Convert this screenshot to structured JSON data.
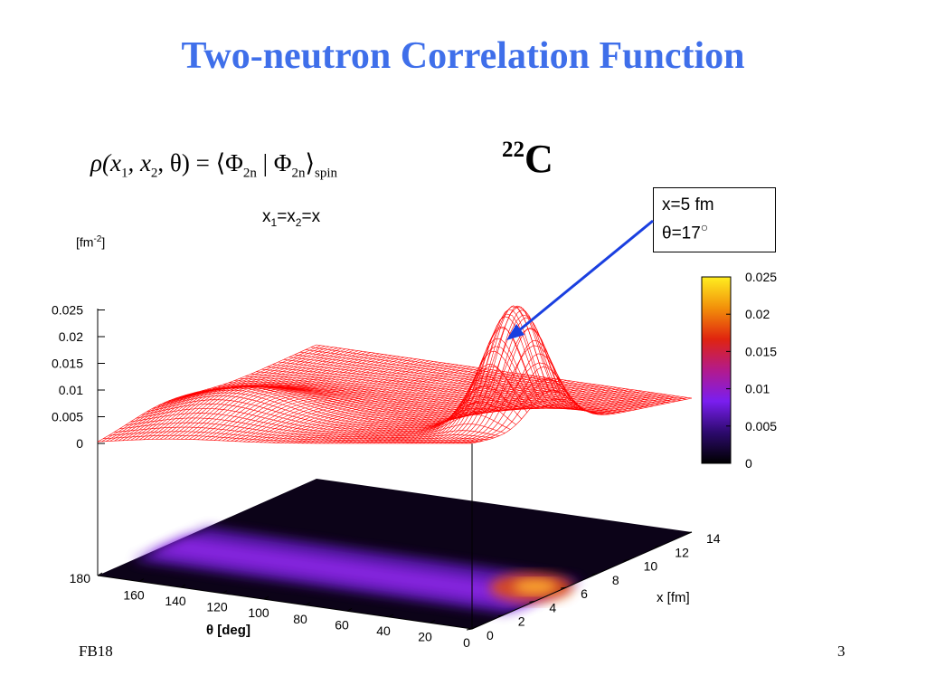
{
  "slide": {
    "title": "Two-neutron Correlation Function",
    "formula": {
      "rho": "ρ(x",
      "sub1": "1",
      "mid1": ", x",
      "sub2": "2",
      "mid2": ", θ) = ⟨Φ",
      "sub3": "2n",
      "mid3": " | Φ",
      "sub4": "2n",
      "mid4": "⟩",
      "sub5": "spin"
    },
    "nucleus": {
      "mass": "22",
      "symbol": "C"
    },
    "condition": {
      "x": "x",
      "sub1": "1",
      "eq1": "=x",
      "sub2": "2",
      "eq2": "=x"
    },
    "unit_label": {
      "base": "[fm",
      "exp": "-2",
      "close": "]"
    },
    "annotation": {
      "line1": "x=5 fm",
      "line2": "θ=17",
      "degree": "○"
    },
    "footer_left": "FB18",
    "page_number": "3"
  },
  "colors": {
    "title": "#3f6fea",
    "surface_mesh": "#ff0000",
    "arrow": "#1a3fe0",
    "colorbar": [
      "#000000",
      "#2d0a6e",
      "#7a1ef0",
      "#b31a8c",
      "#e0240f",
      "#f2900a",
      "#ffee20"
    ]
  },
  "chart_data": {
    "type": "surface3d",
    "x_axis": {
      "label": "x [fm]",
      "ticks": [
        0,
        2,
        4,
        6,
        8,
        10,
        12,
        14
      ],
      "range": [
        0,
        14
      ]
    },
    "theta_axis": {
      "label": "θ [deg]",
      "ticks": [
        0,
        20,
        40,
        60,
        80,
        100,
        120,
        140,
        160,
        180
      ],
      "range": [
        0,
        180
      ]
    },
    "z_axis": {
      "ticks": [
        "0",
        "0.005",
        "0.01",
        "0.015",
        "0.02",
        "0.025"
      ],
      "range": [
        0,
        0.025
      ]
    },
    "colorbar_ticks": [
      "0",
      "0.005",
      "0.01",
      "0.015",
      "0.02",
      "0.025"
    ],
    "peaks": [
      {
        "x": 5,
        "theta": 17,
        "value": 0.0225
      },
      {
        "x": 4.2,
        "theta": 145,
        "value": 0.005
      }
    ],
    "grid": false
  }
}
